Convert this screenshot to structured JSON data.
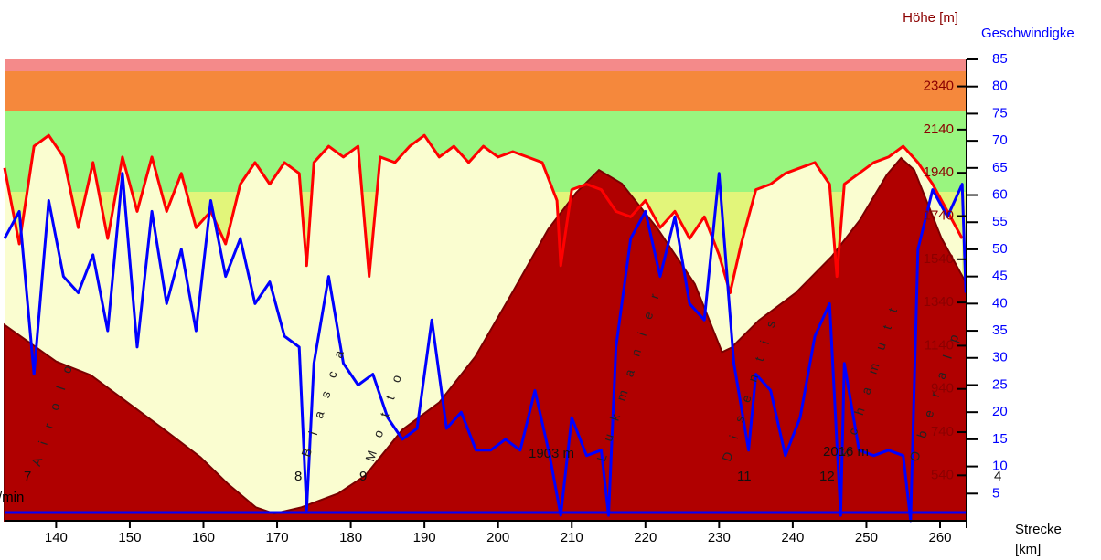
{
  "chart_data": {
    "type": "line",
    "y_label": "Höhe [m]",
    "y2_label": "Geschwindigke",
    "x_label": "Strecke\n[km]",
    "side_label": "/min",
    "xlim": [
      133,
      263.6
    ],
    "xticks": [
      140,
      150,
      160,
      170,
      180,
      190,
      200,
      210,
      220,
      230,
      240,
      250,
      260
    ],
    "ylim": [
      330,
      2465
    ],
    "yticks": [
      540,
      740,
      940,
      1140,
      1340,
      1540,
      1740,
      1940,
      2140,
      2340
    ],
    "y2lim": [
      0,
      85
    ],
    "y2ticks": [
      5,
      10,
      15,
      20,
      25,
      30,
      35,
      40,
      45,
      50,
      55,
      60,
      65,
      70,
      75,
      80,
      85
    ],
    "elevation": {
      "color": "#b00000",
      "x": [
        133,
        140,
        144.7,
        149.7,
        154.7,
        159.6,
        163.4,
        167.1,
        169.6,
        173.3,
        178.3,
        182,
        187,
        192,
        196.9,
        201.9,
        206.8,
        210.6,
        213.7,
        216.8,
        221.7,
        226.7,
        230.4,
        231.7,
        235.4,
        240.4,
        245.3,
        249.1,
        252.8,
        254.7,
        256.5,
        260.2,
        263.6
      ],
      "values": [
        1236,
        1067,
        1004,
        877,
        751,
        624,
        498,
        392,
        363,
        392,
        456,
        540,
        751,
        877,
        1089,
        1384,
        1679,
        1848,
        1953,
        1890,
        1679,
        1426,
        1110,
        1131,
        1257,
        1384,
        1553,
        1721,
        1932,
        2008,
        1953,
        1637,
        1426
      ]
    },
    "series": [
      {
        "color": "#ff0000",
        "axis": "y2",
        "x": [
          133,
          135,
          137,
          139,
          141,
          143,
          145,
          147,
          149,
          151,
          153,
          155,
          157,
          159,
          161,
          163,
          165,
          167,
          169,
          171,
          173,
          174,
          175,
          177,
          179,
          181,
          182.5,
          184,
          186,
          188,
          190,
          192,
          194,
          196,
          198,
          200,
          202,
          204,
          206,
          208,
          208.5,
          210,
          212,
          214,
          216,
          218,
          220,
          222,
          224,
          226,
          228,
          230,
          231.5,
          233,
          235,
          237,
          239,
          241,
          243,
          245,
          246,
          247,
          249,
          251,
          253,
          255,
          257,
          259,
          261,
          263
        ],
        "values": [
          65,
          51,
          69,
          71,
          67,
          54,
          66,
          52,
          67,
          57,
          67,
          57,
          64,
          54,
          57,
          51,
          62,
          66,
          62,
          66,
          64,
          47,
          66,
          69,
          67,
          69,
          45,
          67,
          66,
          69,
          71,
          67,
          69,
          66,
          69,
          67,
          68,
          67,
          66,
          59,
          47,
          61,
          62,
          61,
          57,
          56,
          59,
          54,
          57,
          52,
          56,
          49,
          42,
          51,
          61,
          62,
          64,
          65,
          66,
          62,
          45,
          62,
          64,
          66,
          67,
          69,
          66,
          62,
          57,
          52
        ]
      },
      {
        "color": "#0000ff",
        "axis": "y2",
        "x": [
          133,
          135,
          137,
          139,
          141,
          143,
          145,
          147,
          149,
          151,
          153,
          155,
          157,
          159,
          161,
          163,
          165,
          167,
          169,
          171,
          173,
          174,
          175,
          177,
          179,
          181,
          183,
          185,
          187,
          189,
          191,
          193,
          195,
          197,
          199,
          201,
          203,
          205,
          207,
          208.5,
          210,
          212,
          214,
          215,
          216,
          218,
          220,
          222,
          224,
          226,
          228,
          230,
          232,
          234,
          235,
          237,
          239,
          241,
          243,
          245,
          246.5,
          247,
          249,
          251,
          253,
          255,
          256,
          257,
          259,
          261,
          263,
          263.5
        ],
        "values": [
          52,
          57,
          27,
          59,
          45,
          42,
          49,
          35,
          64,
          32,
          57,
          40,
          50,
          35,
          59,
          45,
          52,
          40,
          44,
          34,
          32,
          2,
          29,
          45,
          29,
          25,
          27,
          19,
          15,
          17,
          37,
          17,
          20,
          13,
          13,
          15,
          13,
          24,
          12,
          1,
          19,
          12,
          13,
          1,
          32,
          52,
          57,
          45,
          56,
          40,
          37,
          64,
          29,
          13,
          27,
          24,
          12,
          19,
          34,
          40,
          1,
          29,
          13,
          12,
          13,
          12,
          0,
          50,
          61,
          56,
          62,
          42
        ]
      }
    ],
    "annotations": [
      "A i r o l o",
      "B i a s c a",
      "M o t t o",
      "L u k m a n i e r",
      "D i s e n t i s",
      "S c h a m u t t",
      "O b e r a l p",
      "1903 m",
      "2016 m",
      "7",
      "8",
      "9",
      "11",
      "12",
      "4"
    ]
  }
}
